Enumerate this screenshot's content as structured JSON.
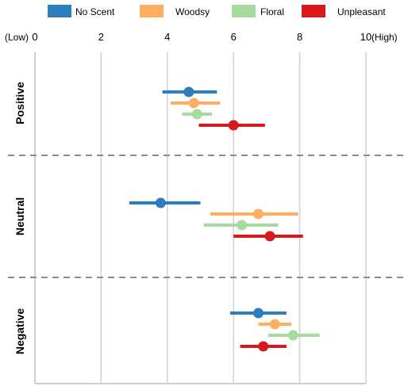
{
  "chart_data": {
    "type": "dot-plot-with-ranges",
    "x_axis": {
      "ticks": [
        0,
        2,
        4,
        6,
        8,
        10
      ],
      "tick_labels": [
        "0",
        "2",
        "4",
        "6",
        "8",
        "10"
      ],
      "low_label": "(Low)",
      "high_label": "(High)",
      "xlim": [
        0,
        10
      ],
      "vertical_grid": true
    },
    "legend": {
      "position": "top"
    },
    "series": [
      {
        "name": "No Scent",
        "color": "#2e7ebb"
      },
      {
        "name": "Woodsy",
        "color": "#fdae61"
      },
      {
        "name": "Floral",
        "color": "#a6dba0"
      },
      {
        "name": "Unpleasant",
        "color": "#d7191c"
      }
    ],
    "groups": [
      {
        "name": "Positive",
        "points": [
          {
            "series": "No Scent",
            "value": 4.65,
            "low": 3.85,
            "high": 5.5
          },
          {
            "series": "Woodsy",
            "value": 4.8,
            "low": 4.1,
            "high": 5.6
          },
          {
            "series": "Floral",
            "value": 4.9,
            "low": 4.45,
            "high": 5.35
          },
          {
            "series": "Unpleasant",
            "value": 6.0,
            "low": 4.95,
            "high": 6.95
          }
        ]
      },
      {
        "name": "Neutral",
        "points": [
          {
            "series": "No Scent",
            "value": 3.8,
            "low": 2.85,
            "high": 5.0
          },
          {
            "series": "Woodsy",
            "value": 6.75,
            "low": 5.3,
            "high": 7.95
          },
          {
            "series": "Floral",
            "value": 6.25,
            "low": 5.1,
            "high": 7.35
          },
          {
            "series": "Unpleasant",
            "value": 7.1,
            "low": 6.0,
            "high": 8.1
          }
        ]
      },
      {
        "name": "Negative",
        "points": [
          {
            "series": "No Scent",
            "value": 6.75,
            "low": 5.9,
            "high": 7.6
          },
          {
            "series": "Woodsy",
            "value": 7.25,
            "low": 6.75,
            "high": 7.75
          },
          {
            "series": "Floral",
            "value": 7.8,
            "low": 7.05,
            "high": 8.6
          },
          {
            "series": "Unpleasant",
            "value": 6.9,
            "low": 6.2,
            "high": 7.6
          }
        ]
      }
    ]
  }
}
